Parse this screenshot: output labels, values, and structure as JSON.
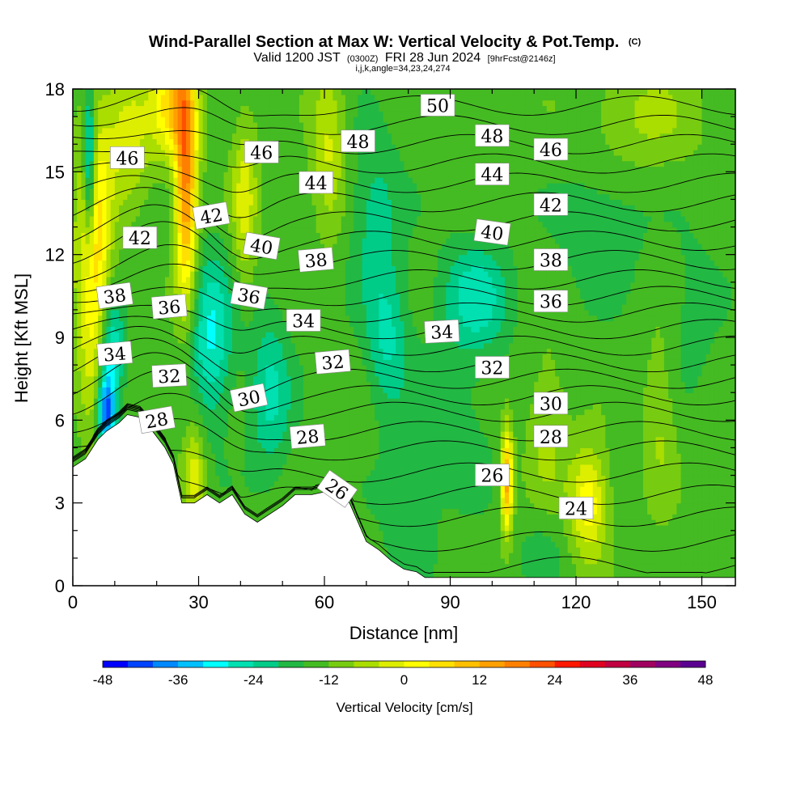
{
  "header": {
    "title_main": "Wind-Parallel Section at Max W: Vertical Velocity & Pot.Temp.",
    "title_mark": "(C)",
    "valid_a": "Valid 1200 JST",
    "valid_zulu": "(0300Z)",
    "valid_b": "FRI 28 Jun 2024",
    "forecast": "[9hrFcst@2146z]",
    "indices": "i,j,k,angle=34,23,24,274"
  },
  "chart_data": {
    "type": "heatmap",
    "xlabel": "Distance [nm]",
    "ylabel": "Height [Kft MSL]",
    "xlim": [
      0,
      158
    ],
    "ylim": [
      0,
      18
    ],
    "x_ticks": [
      0,
      30,
      60,
      90,
      120,
      150
    ],
    "y_ticks": [
      0,
      3,
      6,
      9,
      12,
      15,
      18
    ],
    "colorbar": {
      "label": "Vertical Velocity [cm/s]",
      "min": -48,
      "max": 48,
      "step": 6,
      "ticks": [
        -48,
        -36,
        -24,
        -12,
        0,
        12,
        24,
        36,
        48
      ],
      "colors": [
        "#0000ff",
        "#0044ff",
        "#0088ff",
        "#00c0ff",
        "#00ffff",
        "#00e0b0",
        "#00cc88",
        "#22b844",
        "#44bb22",
        "#77cc11",
        "#aadd00",
        "#ddee00",
        "#ffff00",
        "#ffe000",
        "#ffc000",
        "#ffa000",
        "#ff8000",
        "#ff5000",
        "#ff1800",
        "#e00020",
        "#c00040",
        "#a00060",
        "#800080",
        "#5a0090"
      ]
    },
    "terrain_kft": [
      [
        0,
        4.3
      ],
      [
        3,
        4.6
      ],
      [
        6,
        5.3
      ],
      [
        8,
        5.6
      ],
      [
        11,
        5.9
      ],
      [
        13,
        6.2
      ],
      [
        16,
        6.1
      ],
      [
        19,
        5.6
      ],
      [
        22,
        5.0
      ],
      [
        24,
        4.4
      ],
      [
        26,
        3.0
      ],
      [
        29,
        3.0
      ],
      [
        32,
        3.3
      ],
      [
        35,
        3.0
      ],
      [
        38,
        3.3
      ],
      [
        41,
        2.6
      ],
      [
        44,
        2.3
      ],
      [
        47,
        2.6
      ],
      [
        50,
        2.9
      ],
      [
        53,
        3.3
      ],
      [
        57,
        3.3
      ],
      [
        60,
        3.4
      ],
      [
        63,
        3.3
      ],
      [
        66,
        3.0
      ],
      [
        68,
        2.3
      ],
      [
        70,
        1.6
      ],
      [
        73,
        1.3
      ],
      [
        76,
        0.9
      ],
      [
        79,
        0.6
      ],
      [
        82,
        0.5
      ],
      [
        84,
        0.3
      ],
      [
        100,
        0.3
      ],
      [
        158,
        0.3
      ]
    ],
    "w_features": [
      {
        "x": 5,
        "y": 11.8,
        "w": 34,
        "sx": 4,
        "sy": 5
      },
      {
        "x": 27,
        "y": 14.5,
        "w": 46,
        "sx": 2.6,
        "sy": 4.2
      },
      {
        "x": 24,
        "y": 17.5,
        "w": 30,
        "sx": 5,
        "sy": 2
      },
      {
        "x": 13,
        "y": 16.5,
        "w": 18,
        "sx": 6,
        "sy": 2.5
      },
      {
        "x": 41,
        "y": 14.0,
        "w": 18,
        "sx": 3,
        "sy": 3
      },
      {
        "x": 61,
        "y": 16.0,
        "w": 16,
        "sx": 4,
        "sy": 3
      },
      {
        "x": 103.5,
        "y": 3.8,
        "w": 42,
        "sx": 1.4,
        "sy": 1.9
      },
      {
        "x": 123,
        "y": 3.0,
        "w": 26,
        "sx": 4.5,
        "sy": 2
      },
      {
        "x": 113,
        "y": 5.5,
        "w": 10,
        "sx": 5,
        "sy": 3
      },
      {
        "x": 140,
        "y": 6.0,
        "w": 10,
        "sx": 4,
        "sy": 3
      },
      {
        "x": 136,
        "y": 17.0,
        "w": 10,
        "sx": 14,
        "sy": 2
      },
      {
        "x": 29,
        "y": 4.0,
        "w": 18,
        "sx": 2.5,
        "sy": 2
      },
      {
        "x": 4,
        "y": 15.0,
        "w": -36,
        "sx": 1.5,
        "sy": 3
      },
      {
        "x": 8,
        "y": 6.3,
        "w": -44,
        "sx": 2,
        "sy": 1.3
      },
      {
        "x": 9,
        "y": 8.5,
        "w": -26,
        "sx": 3,
        "sy": 2
      },
      {
        "x": 33,
        "y": 9.0,
        "w": -22,
        "sx": 5,
        "sy": 3
      },
      {
        "x": 47,
        "y": 7.0,
        "w": -16,
        "sx": 5,
        "sy": 3
      },
      {
        "x": 75,
        "y": 9.0,
        "w": -16,
        "sx": 5,
        "sy": 2.5
      },
      {
        "x": 96,
        "y": 10.5,
        "w": -18,
        "sx": 8,
        "sy": 2
      },
      {
        "x": 91,
        "y": 6.0,
        "w": -6,
        "sx": 10,
        "sy": 3
      },
      {
        "x": 72,
        "y": 13.5,
        "w": -12,
        "sx": 6,
        "sy": 3
      },
      {
        "x": 80,
        "y": 3.0,
        "w": -8,
        "sx": 7,
        "sy": 2.5
      },
      {
        "x": 112,
        "y": 1.5,
        "w": -6,
        "sx": 6,
        "sy": 1.5
      },
      {
        "x": 126,
        "y": 13.0,
        "w": -8,
        "sx": 10,
        "sy": 2.5
      },
      {
        "x": 148,
        "y": 10.0,
        "w": -6,
        "sx": 6,
        "sy": 3
      }
    ],
    "theta_contours": [
      {
        "base": 0.7,
        "bump": 0.4
      },
      {
        "base": 1.6,
        "bump": 0.5
      },
      {
        "base": 2.5,
        "bump": 0.6
      },
      {
        "base": 3.3,
        "bump": 0.8
      },
      {
        "base": 4.1,
        "bump": 0.9
      },
      {
        "base": 4.9,
        "bump": 1.0
      },
      {
        "base": 5.6,
        "bump": 1.0
      },
      {
        "base": 6.3,
        "bump": 1.0
      },
      {
        "base": 6.9,
        "bump": 1.0
      },
      {
        "base": 7.5,
        "bump": 1.0
      },
      {
        "base": 8.1,
        "bump": 1.0
      },
      {
        "base": 8.7,
        "bump": 1.0
      },
      {
        "base": 9.3,
        "bump": 1.0
      },
      {
        "base": 9.9,
        "bump": 1.0
      },
      {
        "base": 10.5,
        "bump": 1.0
      },
      {
        "base": 11.1,
        "bump": 0.9
      },
      {
        "base": 11.8,
        "bump": 0.9
      },
      {
        "base": 12.5,
        "bump": 0.8
      },
      {
        "base": 13.2,
        "bump": 0.8
      },
      {
        "base": 13.9,
        "bump": 0.7
      },
      {
        "base": 14.6,
        "bump": 0.7
      },
      {
        "base": 15.3,
        "bump": 0.6
      },
      {
        "base": 16.0,
        "bump": 0.6
      },
      {
        "base": 16.7,
        "bump": 0.5
      },
      {
        "base": 17.4,
        "bump": 0.4
      }
    ],
    "contour_labels": [
      {
        "text": "50",
        "x": 87,
        "y": 17.4,
        "rot": 0
      },
      {
        "text": "48",
        "x": 68,
        "y": 16.1,
        "rot": 0
      },
      {
        "text": "48",
        "x": 100,
        "y": 16.3,
        "rot": 0
      },
      {
        "text": "46",
        "x": 13,
        "y": 15.5,
        "rot": 0
      },
      {
        "text": "46",
        "x": 45,
        "y": 15.7,
        "rot": 0
      },
      {
        "text": "46",
        "x": 114,
        "y": 15.8,
        "rot": 0
      },
      {
        "text": "44",
        "x": 58,
        "y": 14.6,
        "rot": 0
      },
      {
        "text": "44",
        "x": 100,
        "y": 14.9,
        "rot": 0
      },
      {
        "text": "42",
        "x": 16,
        "y": 12.6,
        "rot": 0
      },
      {
        "text": "42",
        "x": 33,
        "y": 13.4,
        "rot": -10
      },
      {
        "text": "42",
        "x": 114,
        "y": 13.8,
        "rot": 0
      },
      {
        "text": "40",
        "x": 45,
        "y": 12.3,
        "rot": 10
      },
      {
        "text": "40",
        "x": 100,
        "y": 12.8,
        "rot": 8
      },
      {
        "text": "38",
        "x": 10,
        "y": 10.5,
        "rot": -8
      },
      {
        "text": "38",
        "x": 58,
        "y": 11.8,
        "rot": -5
      },
      {
        "text": "38",
        "x": 114,
        "y": 11.8,
        "rot": 0
      },
      {
        "text": "36",
        "x": 23,
        "y": 10.1,
        "rot": -5
      },
      {
        "text": "36",
        "x": 42,
        "y": 10.5,
        "rot": 10
      },
      {
        "text": "36",
        "x": 114,
        "y": 10.3,
        "rot": 0
      },
      {
        "text": "34",
        "x": 10,
        "y": 8.4,
        "rot": -5
      },
      {
        "text": "34",
        "x": 55,
        "y": 9.6,
        "rot": 0
      },
      {
        "text": "34",
        "x": 88,
        "y": 9.2,
        "rot": -3
      },
      {
        "text": "32",
        "x": 23,
        "y": 7.6,
        "rot": -3
      },
      {
        "text": "32",
        "x": 62,
        "y": 8.1,
        "rot": -5
      },
      {
        "text": "32",
        "x": 100,
        "y": 7.9,
        "rot": 0
      },
      {
        "text": "30",
        "x": 42,
        "y": 6.8,
        "rot": -12
      },
      {
        "text": "30",
        "x": 114,
        "y": 6.6,
        "rot": 0
      },
      {
        "text": "28",
        "x": 20,
        "y": 6.0,
        "rot": -10
      },
      {
        "text": "28",
        "x": 56,
        "y": 5.4,
        "rot": -5
      },
      {
        "text": "28",
        "x": 114,
        "y": 5.4,
        "rot": 0
      },
      {
        "text": "26",
        "x": 63,
        "y": 3.5,
        "rot": 35
      },
      {
        "text": "26",
        "x": 100,
        "y": 4.0,
        "rot": 0
      },
      {
        "text": "24",
        "x": 120,
        "y": 2.8,
        "rot": 0
      }
    ]
  }
}
